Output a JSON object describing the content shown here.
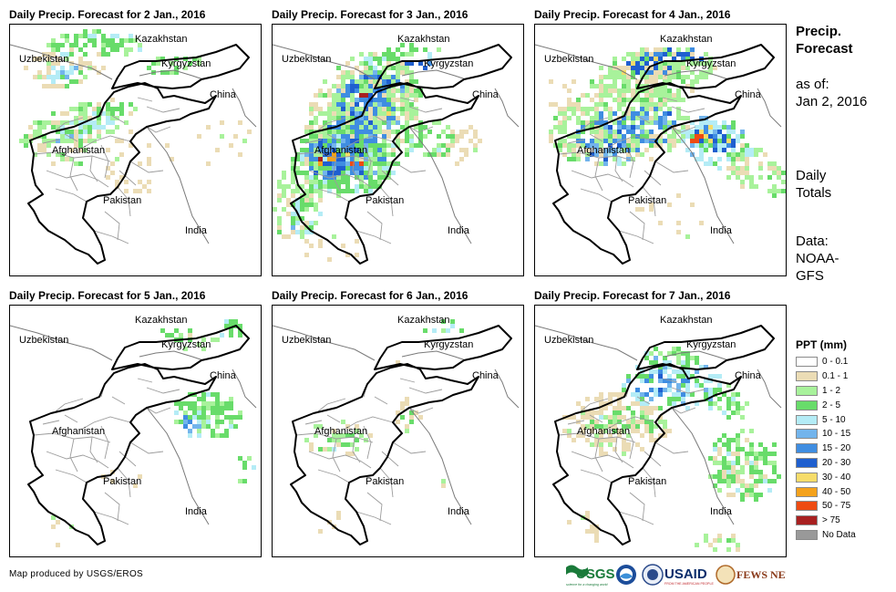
{
  "panels": [
    {
      "title": "Daily Precip. Forecast for 2 Jan., 2016",
      "date": "2 Jan."
    },
    {
      "title": "Daily Precip. Forecast for 3 Jan., 2016",
      "date": "3 Jan."
    },
    {
      "title": "Daily Precip. Forecast for 4 Jan., 2016",
      "date": "4 Jan."
    },
    {
      "title": "Daily Precip. Forecast for 5 Jan., 2016",
      "date": "5 Jan."
    },
    {
      "title": "Daily Precip. Forecast for 6 Jan., 2016",
      "date": "6 Jan."
    },
    {
      "title": "Daily Precip. Forecast for 7 Jan., 2016",
      "date": "7 Jan."
    }
  ],
  "map_labels": {
    "kazakhstan": "Kazakhstan",
    "uzbekistan": "Uzbekistan",
    "kyrgyzstan": "Kyrgyzstan",
    "china": "China",
    "afghanistan": "Afghanistan",
    "pakistan": "Pakistan",
    "india": "India"
  },
  "sidebar": {
    "title_line1": "Precip.",
    "title_line2": "Forecast",
    "asof_label": "as of:",
    "asof_date": "Jan 2, 2016",
    "totals_line1": "Daily",
    "totals_line2": "Totals",
    "data_line1": "Data:",
    "data_line2": "NOAA-",
    "data_line3": "GFS"
  },
  "legend": {
    "title": "PPT (mm)",
    "items": [
      {
        "label": "0 - 0.1",
        "color": "#ffffff"
      },
      {
        "label": "0.1 - 1",
        "color": "#ebdcb5"
      },
      {
        "label": "1 - 2",
        "color": "#a8f29b"
      },
      {
        "label": "2 - 5",
        "color": "#68dc6a"
      },
      {
        "label": "5 - 10",
        "color": "#b4ecf6"
      },
      {
        "label": "10 - 15",
        "color": "#72b4ec"
      },
      {
        "label": "15 - 20",
        "color": "#3f8de1"
      },
      {
        "label": "20 - 30",
        "color": "#1f5fcf"
      },
      {
        "label": "30 - 40",
        "color": "#f6dc6a"
      },
      {
        "label": "40 - 50",
        "color": "#f4a21c"
      },
      {
        "label": "50 - 75",
        "color": "#ee4b12"
      },
      {
        "label": "> 75",
        "color": "#a82020"
      },
      {
        "label": "No Data",
        "color": "#999999"
      }
    ]
  },
  "footer": {
    "credit": "Map produced by USGS/EROS",
    "usgs": "USGS",
    "usgs_tagline": "science for a changing world",
    "usaid": "USAID",
    "usaid_tagline": "FROM THE AMERICAN PEOPLE",
    "fewsnet": "FEWS NET"
  }
}
